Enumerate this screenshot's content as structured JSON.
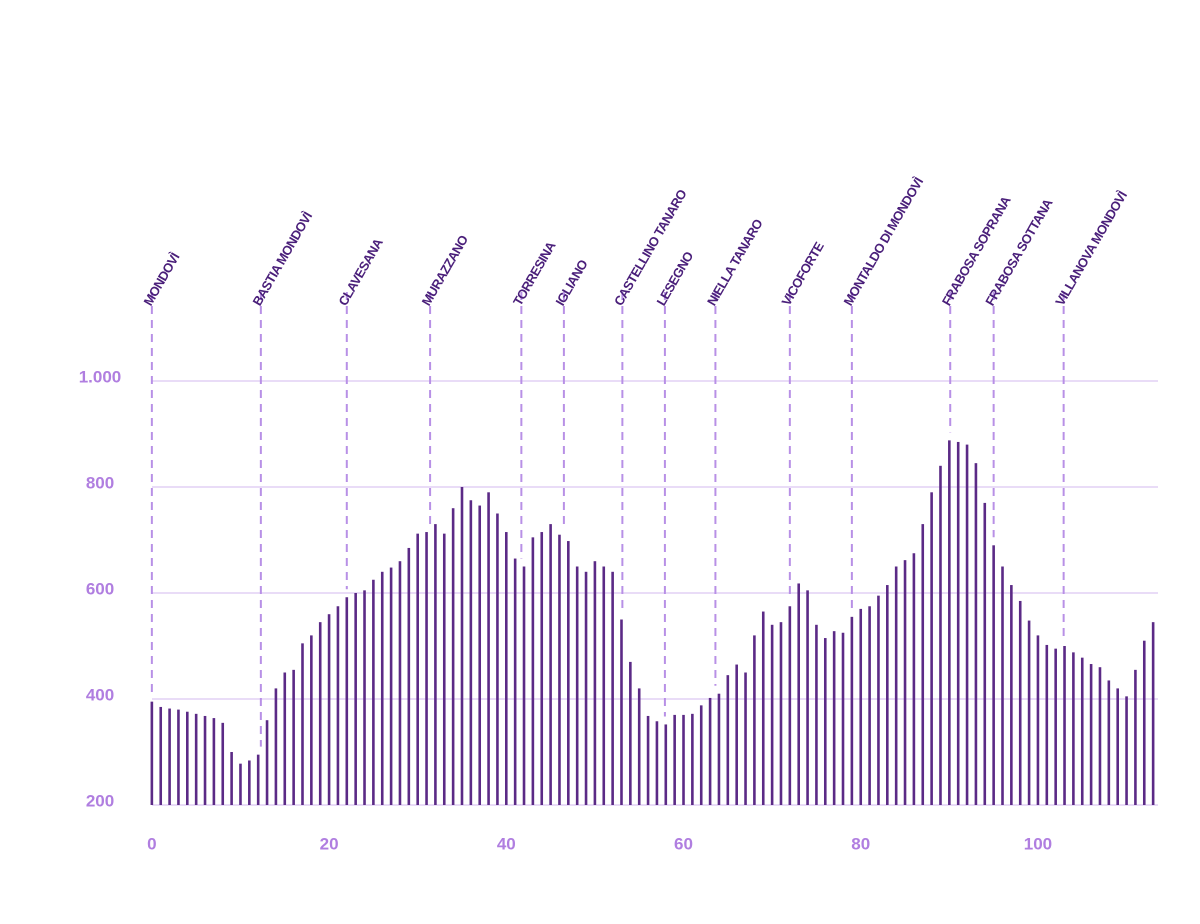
{
  "chart_data": {
    "type": "bar",
    "x": [
      0,
      1,
      2,
      3,
      4,
      5,
      6,
      7,
      8,
      9,
      10,
      11,
      12,
      13,
      14,
      15,
      16,
      17,
      18,
      19,
      20,
      21,
      22,
      23,
      24,
      25,
      26,
      27,
      28,
      29,
      30,
      31,
      32,
      33,
      34,
      35,
      36,
      37,
      38,
      39,
      40,
      41,
      42,
      43,
      44,
      45,
      46,
      47,
      48,
      49,
      50,
      51,
      52,
      53,
      54,
      55,
      56,
      57,
      58,
      59,
      60,
      61,
      62,
      63,
      64,
      65,
      66,
      67,
      68,
      69,
      70,
      71,
      72,
      73,
      74,
      75,
      76,
      77,
      78,
      79,
      80,
      81,
      82,
      83,
      84,
      85,
      86,
      87,
      88,
      89,
      90,
      91,
      92,
      93,
      94,
      95,
      96,
      97,
      98,
      99,
      100,
      101,
      102,
      103,
      104,
      105,
      106,
      107,
      108,
      109,
      110,
      111,
      112,
      113
    ],
    "values": [
      395,
      385,
      382,
      380,
      376,
      372,
      368,
      364,
      355,
      300,
      278,
      284,
      295,
      360,
      420,
      450,
      455,
      505,
      520,
      545,
      560,
      575,
      592,
      600,
      605,
      625,
      640,
      648,
      660,
      685,
      712,
      715,
      730,
      712,
      760,
      800,
      775,
      765,
      790,
      750,
      715,
      665,
      650,
      705,
      715,
      730,
      710,
      698,
      650,
      640,
      660,
      650,
      640,
      550,
      470,
      420,
      368,
      358,
      352,
      370,
      370,
      372,
      388,
      402,
      410,
      445,
      465,
      450,
      520,
      565,
      540,
      545,
      575,
      618,
      605,
      540,
      515,
      528,
      525,
      555,
      570,
      575,
      595,
      615,
      650,
      662,
      675,
      730,
      790,
      840,
      888,
      885,
      880,
      845,
      770,
      690,
      650,
      615,
      585,
      548,
      520,
      502,
      495,
      500,
      488,
      478,
      466,
      460,
      435,
      420,
      405,
      455,
      510,
      545
    ],
    "color": "#5b2a86",
    "xlim": [
      -1,
      114
    ],
    "xticks": [
      0,
      20,
      40,
      60,
      80,
      100
    ],
    "ylim": [
      200,
      1200
    ],
    "yticks": [
      200,
      400,
      600,
      800,
      {
        "value": 1000,
        "label": "1.000"
      }
    ],
    "grid": true,
    "annotations": [
      {
        "label": "MONDOVÌ",
        "x": 0
      },
      {
        "label": "BASTIA MONDOVÌ",
        "x": 12.3
      },
      {
        "label": "CLAVESANA",
        "x": 22
      },
      {
        "label": "MURAZZANO",
        "x": 31.4
      },
      {
        "label": "TORRESINA",
        "x": 41.7
      },
      {
        "label": "IGLIANO",
        "x": 46.5
      },
      {
        "label": "CASTELLINO TANARO",
        "x": 53.1
      },
      {
        "label": "LESEGNO",
        "x": 57.9
      },
      {
        "label": "NIELLA TANARO",
        "x": 63.6
      },
      {
        "label": "VICOFORTE",
        "x": 72
      },
      {
        "label": "MONTALDO DI MONDOVÌ",
        "x": 79
      },
      {
        "label": "FRABOSA SOPRANA",
        "x": 90.1
      },
      {
        "label": "FRABOSA SOTTANA",
        "x": 95
      },
      {
        "label": "VILLANOVA MONDOVÌ",
        "x": 102.9
      }
    ]
  }
}
